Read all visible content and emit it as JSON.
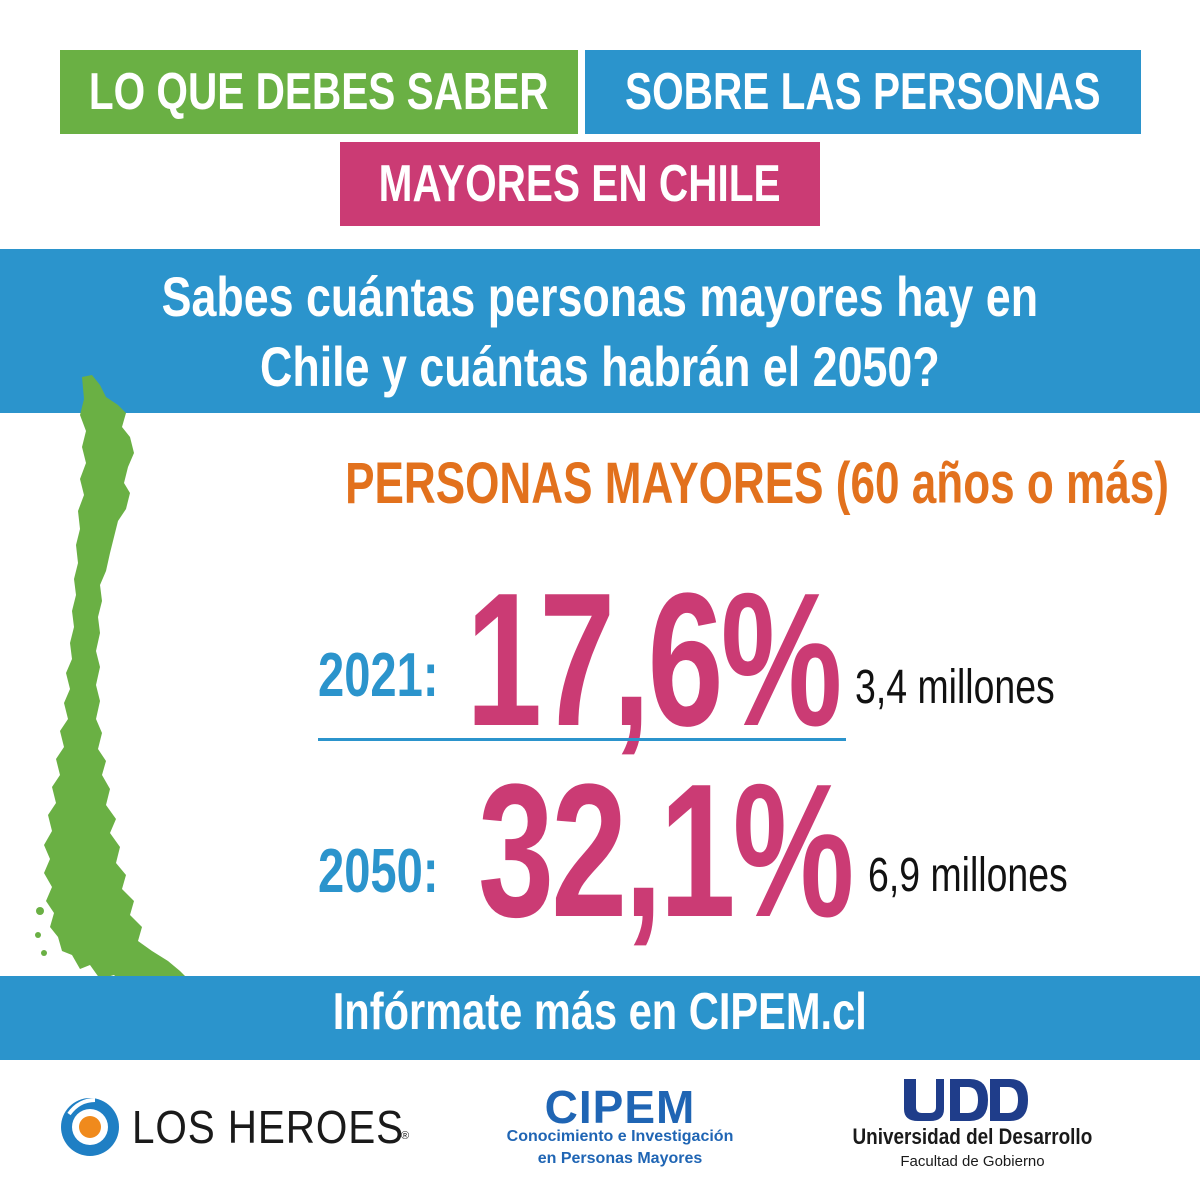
{
  "header": {
    "part1": "LO QUE DEBES SABER",
    "part2": "SOBRE LAS PERSONAS",
    "part3": "MAYORES EN CHILE"
  },
  "question": {
    "line1": "Sabes cuántas personas mayores hay en",
    "line2": "Chile y cuántas habrán el 2050?"
  },
  "subtitle": "PERSONAS MAYORES (60 años o más)",
  "stats": [
    {
      "year_label": "2021:",
      "percent": "17,6%",
      "count": "3,4 millones"
    },
    {
      "year_label": "2050:",
      "percent": "32,1%",
      "count": "6,9 millones"
    }
  ],
  "footer": {
    "cta": "Infórmate más en CIPEM.cl"
  },
  "logos": {
    "los_heroes": {
      "name": "LOS HEROES",
      "reg": "®"
    },
    "cipem": {
      "name": "CIPEM",
      "line1": "Conocimiento e Investigación",
      "line2": "en Personas Mayores"
    },
    "udd": {
      "mark": "UDD",
      "name": "Universidad del Desarrollo",
      "faculty": "Facultad de Gobierno"
    }
  },
  "colors": {
    "green": "#6ab044",
    "blue": "#2b94cc",
    "pink": "#cb3b74",
    "orange": "#e2711d",
    "navy": "#1f65b4"
  },
  "icons": {
    "map": "chile-map-icon",
    "los_heroes_logo": "los-heroes-logo-icon",
    "udd_logo": "udd-logo-icon"
  }
}
